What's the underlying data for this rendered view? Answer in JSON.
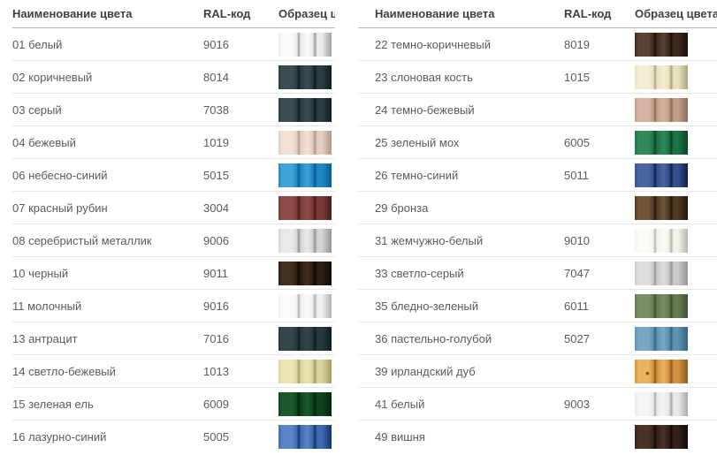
{
  "columns": {
    "name": "Наименование цвета",
    "ral": "RAL-код",
    "sample": "Образец цвета"
  },
  "theme": {
    "header_text": "#3f3f3f",
    "body_text": "#5a5a5a",
    "header_rule": "#b3b3b3",
    "row_rule": "#e6e6e6",
    "background": "#ffffff"
  },
  "tables": [
    {
      "rows": [
        {
          "name": "01 белый",
          "ral": "9016",
          "swatch": {
            "light": "#fafafa",
            "base": "#ececec",
            "dark": "#9f9f9f"
          }
        },
        {
          "name": "02 коричневый",
          "ral": "8014",
          "swatch": {
            "light": "#3a4d52",
            "base": "#293d42",
            "dark": "#101d22"
          }
        },
        {
          "name": "03 серый",
          "ral": "7038",
          "swatch": {
            "light": "#3a4d52",
            "base": "#293d42",
            "dark": "#101d22"
          }
        },
        {
          "name": "04 бежевый",
          "ral": "1019",
          "swatch": {
            "light": "#f2e0d4",
            "base": "#e3cec1",
            "dark": "#b2988a"
          }
        },
        {
          "name": "06 небесно-синий",
          "ral": "5015",
          "swatch": {
            "light": "#42a3d8",
            "base": "#1f88c7",
            "dark": "#0a5c94"
          }
        },
        {
          "name": "07 красный рубин",
          "ral": "3004",
          "swatch": {
            "light": "#8e4c48",
            "base": "#7a3b39",
            "dark": "#471c1c"
          }
        },
        {
          "name": "08 серебристый металлик",
          "ral": "9006",
          "swatch": {
            "light": "#e9e9eb",
            "base": "#d4d4d6",
            "dark": "#949498"
          }
        },
        {
          "name": "10 черный",
          "ral": "9011",
          "swatch": {
            "light": "#43301f",
            "base": "#2d1d12",
            "dark": "#0e0805"
          }
        },
        {
          "name": "11 молочный",
          "ral": "9016",
          "swatch": {
            "light": "#fbfbf9",
            "base": "#f0f0ee",
            "dark": "#b0b0ae"
          }
        },
        {
          "name": "13 антрацит",
          "ral": "7016",
          "swatch": {
            "light": "#33464b",
            "base": "#263a3e",
            "dark": "#0e1c20"
          }
        },
        {
          "name": "14 светло-бежевый",
          "ral": "1013",
          "swatch": {
            "light": "#ece4b2",
            "base": "#dcd49e",
            "dark": "#a29a68"
          }
        },
        {
          "name": "15 зеленая ель",
          "ral": "6009",
          "swatch": {
            "light": "#1c5a2c",
            "base": "#0f4420",
            "dark": "#03230c"
          }
        },
        {
          "name": "16 лазурно-синий",
          "ral": "5005",
          "swatch": {
            "light": "#5a85c4",
            "base": "#3d6bb0",
            "dark": "#173468"
          }
        }
      ]
    },
    {
      "rows": [
        {
          "name": "22 темно-коричневый",
          "ral": "8019",
          "swatch": {
            "light": "#5c4232",
            "base": "#3e2a1e",
            "dark": "#1c100a"
          }
        },
        {
          "name": "23 слоновая кость",
          "ral": "1015",
          "swatch": {
            "light": "#f3edd2",
            "base": "#e8e1c0",
            "dark": "#aaa37e"
          }
        },
        {
          "name": "24 темно-бежевый",
          "ral": "",
          "swatch": {
            "light": "#d4b4a0",
            "base": "#c39f8b",
            "dark": "#8e6c5a"
          }
        },
        {
          "name": "25 зеленый мох",
          "ral": "6005",
          "swatch": {
            "light": "#2f8a58",
            "base": "#1d7346",
            "dark": "#084226"
          }
        },
        {
          "name": "26 темно-синий",
          "ral": "5011",
          "swatch": {
            "light": "#4a66a0",
            "base": "#344f8c",
            "dark": "#101f48"
          }
        },
        {
          "name": "29 бронза",
          "ral": "",
          "swatch": {
            "light": "#705538",
            "base": "#503a26",
            "dark": "#241708"
          }
        },
        {
          "name": "31 жемчужно-белый",
          "ral": "9010",
          "swatch": {
            "light": "#fcfbf7",
            "base": "#f2f1ea",
            "dark": "#b6b5ac"
          }
        },
        {
          "name": "33 светло-серый",
          "ral": "7047",
          "swatch": {
            "light": "#dedede",
            "base": "#c9c9c9",
            "dark": "#969696"
          }
        },
        {
          "name": "35 бледно-зеленый",
          "ral": "6011",
          "swatch": {
            "light": "#798e64",
            "base": "#657b51",
            "dark": "#3e5034"
          }
        },
        {
          "name": "36 пастельно-голубой",
          "ral": "5027",
          "swatch": {
            "light": "#78a8c4",
            "base": "#5d92b2",
            "dark": "#34647f"
          }
        },
        {
          "name": "39 ирландский дуб",
          "ral": "",
          "swatch": {
            "light": "#e9b562",
            "base": "#d2923e",
            "dark": "#8e5a1c",
            "wood": true
          }
        },
        {
          "name": "41 белый",
          "ral": "9003",
          "swatch": {
            "light": "#f5f5f3",
            "base": "#e8e8e6",
            "dark": "#a9a9a7"
          }
        },
        {
          "name": "49 вишня",
          "ral": "",
          "swatch": {
            "light": "#4a3226",
            "base": "#33211a",
            "dark": "#120a06"
          }
        }
      ]
    }
  ]
}
